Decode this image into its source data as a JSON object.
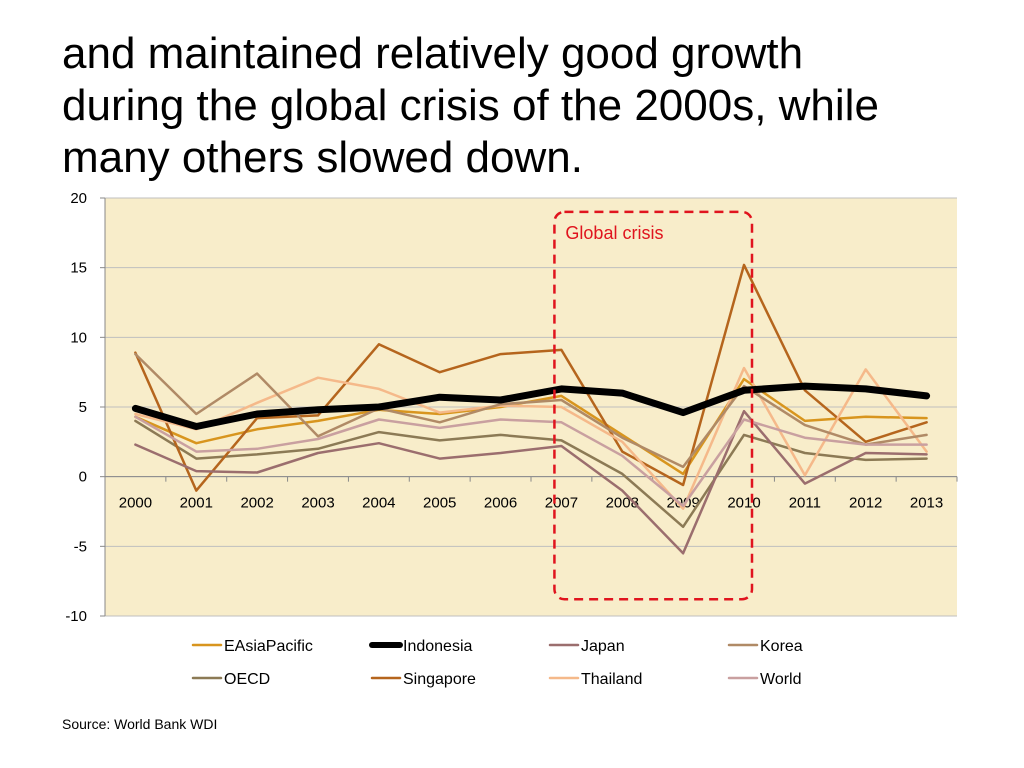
{
  "title": {
    "lines": [
      "and maintained relatively good growth",
      "during the global crisis of the 2000s, while",
      "many others slowed down."
    ]
  },
  "source": "Source: World Bank WDI",
  "colors": {
    "plot_background": "#F8EDCA",
    "grid": "#BFBFBF",
    "crisis_box": "#E0141E"
  },
  "chart_data": {
    "type": "line",
    "title": "",
    "xlabel": "",
    "ylabel": "",
    "ylim": [
      -10,
      20
    ],
    "yticks": [
      -10,
      -5,
      0,
      5,
      10,
      15,
      20
    ],
    "x": [
      "2000",
      "2001",
      "2002",
      "2003",
      "2004",
      "2005",
      "2006",
      "2007",
      "2008",
      "2009",
      "2010",
      "2011",
      "2012",
      "2013"
    ],
    "grid": true,
    "legend": "bottom",
    "annotation": {
      "label": "Global crisis",
      "x_range": [
        "2007",
        "2010"
      ],
      "y_range": [
        -8.8,
        19.0
      ]
    },
    "series": [
      {
        "name": "EAsiaPacific",
        "color": "#D8951E",
        "width": 2.5,
        "values": [
          4.3,
          2.4,
          3.4,
          4.0,
          4.8,
          4.5,
          5.0,
          5.8,
          3.0,
          0.2,
          7.0,
          4.0,
          4.3,
          4.2
        ]
      },
      {
        "name": "OECD",
        "color": "#8C7A55",
        "width": 2.5,
        "values": [
          4.0,
          1.3,
          1.6,
          2.0,
          3.2,
          2.6,
          3.0,
          2.6,
          0.2,
          -3.6,
          3.0,
          1.7,
          1.2,
          1.3
        ]
      },
      {
        "name": "Indonesia",
        "color": "#000000",
        "width": 7,
        "values": [
          4.9,
          3.6,
          4.5,
          4.8,
          5.0,
          5.7,
          5.5,
          6.3,
          6.0,
          4.6,
          6.2,
          6.5,
          6.3,
          5.8
        ]
      },
      {
        "name": "Singapore",
        "color": "#B5651D",
        "width": 2.5,
        "values": [
          8.9,
          -1.0,
          4.2,
          4.4,
          9.5,
          7.5,
          8.8,
          9.1,
          1.8,
          -0.6,
          15.2,
          6.2,
          2.5,
          3.9
        ]
      },
      {
        "name": "Japan",
        "color": "#9B6E6E",
        "width": 2.5,
        "values": [
          2.3,
          0.4,
          0.3,
          1.7,
          2.4,
          1.3,
          1.7,
          2.2,
          -1.0,
          -5.5,
          4.7,
          -0.5,
          1.7,
          1.6
        ]
      },
      {
        "name": "Thailand",
        "color": "#F5B98A",
        "width": 2.5,
        "values": [
          4.5,
          3.4,
          5.3,
          7.1,
          6.3,
          4.6,
          5.1,
          5.0,
          2.5,
          -2.3,
          7.8,
          0.1,
          7.7,
          1.8
        ]
      },
      {
        "name": "Korea",
        "color": "#B08A66",
        "width": 2.5,
        "values": [
          8.8,
          4.5,
          7.4,
          2.9,
          4.9,
          3.9,
          5.2,
          5.5,
          2.8,
          0.7,
          6.5,
          3.7,
          2.3,
          3.0
        ]
      },
      {
        "name": "World",
        "color": "#C9A0A0",
        "width": 2.5,
        "values": [
          4.3,
          1.8,
          2.0,
          2.7,
          4.1,
          3.5,
          4.1,
          3.9,
          1.5,
          -2.1,
          4.1,
          2.8,
          2.3,
          2.3
        ]
      }
    ]
  }
}
